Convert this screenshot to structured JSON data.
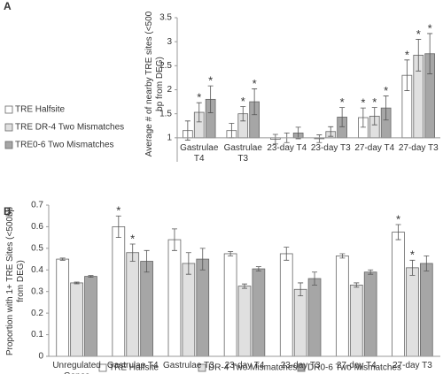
{
  "chart_data": [
    {
      "type": "bar",
      "panel_label": "A",
      "ylabel": "Average # of nearby TRE sites (<500 bp from DEG)",
      "categories": [
        "Gastrulae T4",
        "Gastrulae T3",
        "23-day T4",
        "23-day T3",
        "27-day T4",
        "27-day T3"
      ],
      "series": [
        {
          "name": "TRE Halfsite",
          "color": "#ffffff",
          "values": [
            1.15,
            1.15,
            0.97,
            0.98,
            1.42,
            2.3
          ],
          "errors": [
            0.2,
            0.15,
            0.1,
            0.08,
            0.2,
            0.32
          ],
          "markers": [
            null,
            null,
            null,
            null,
            "*",
            "*"
          ]
        },
        {
          "name": "TRE DR-4 Two Mismatches",
          "color": "#e0e0e0",
          "values": [
            1.53,
            1.5,
            1.0,
            1.13,
            1.45,
            2.72
          ],
          "errors": [
            0.2,
            0.15,
            0.1,
            0.1,
            0.18,
            0.33
          ],
          "markers": [
            "*",
            "*",
            null,
            null,
            "*",
            "*"
          ]
        },
        {
          "name": "TRE0-6 Two Mismatches",
          "color": "#a6a6a6",
          "values": [
            1.8,
            1.75,
            1.1,
            1.43,
            1.62,
            2.75
          ],
          "errors": [
            0.28,
            0.27,
            0.12,
            0.2,
            0.25,
            0.42
          ],
          "markers": [
            "*",
            "*",
            null,
            "*",
            "*",
            "*"
          ]
        }
      ],
      "ylim": [
        0.5,
        3.5
      ],
      "yticks": [
        1,
        1.5,
        2,
        2.5,
        3,
        3.5
      ],
      "x_axis_at": 1,
      "legend": "left"
    },
    {
      "type": "bar",
      "panel_label": "B",
      "ylabel": "Proportion with 1+ TRE Sites (<500bp from DEG)",
      "categories": [
        "Unregulated Genes",
        "Gastrulae T4",
        "Gastrulae T3",
        "23-day T4",
        "23-day T3",
        "27-day T4",
        "27-day T3"
      ],
      "series": [
        {
          "name": "TRE Halfsite",
          "color": "#ffffff",
          "values": [
            0.45,
            0.6,
            0.54,
            0.475,
            0.475,
            0.465,
            0.575
          ],
          "errors": [
            0.005,
            0.05,
            0.05,
            0.01,
            0.03,
            0.01,
            0.035
          ],
          "markers": [
            null,
            "*",
            null,
            null,
            null,
            null,
            "*"
          ]
        },
        {
          "name": "DR-4 Two Mismatches",
          "color": "#e0e0e0",
          "values": [
            0.34,
            0.48,
            0.43,
            0.325,
            0.31,
            0.33,
            0.41
          ],
          "errors": [
            0.004,
            0.04,
            0.05,
            0.01,
            0.03,
            0.01,
            0.035
          ],
          "markers": [
            null,
            "*",
            null,
            null,
            null,
            null,
            "*"
          ]
        },
        {
          "name": "DR0-6 Two Mismatches",
          "color": "#a6a6a6",
          "values": [
            0.37,
            0.44,
            0.45,
            0.405,
            0.36,
            0.39,
            0.43
          ],
          "errors": [
            0.004,
            0.05,
            0.05,
            0.01,
            0.03,
            0.01,
            0.035
          ],
          "markers": [
            null,
            null,
            null,
            null,
            null,
            null,
            null
          ]
        }
      ],
      "ylim": [
        0,
        0.7
      ],
      "yticks": [
        0,
        0.1,
        0.2,
        0.3,
        0.4,
        0.5,
        0.6,
        0.7
      ],
      "x_axis_at": 0,
      "legend": "bottom"
    }
  ]
}
